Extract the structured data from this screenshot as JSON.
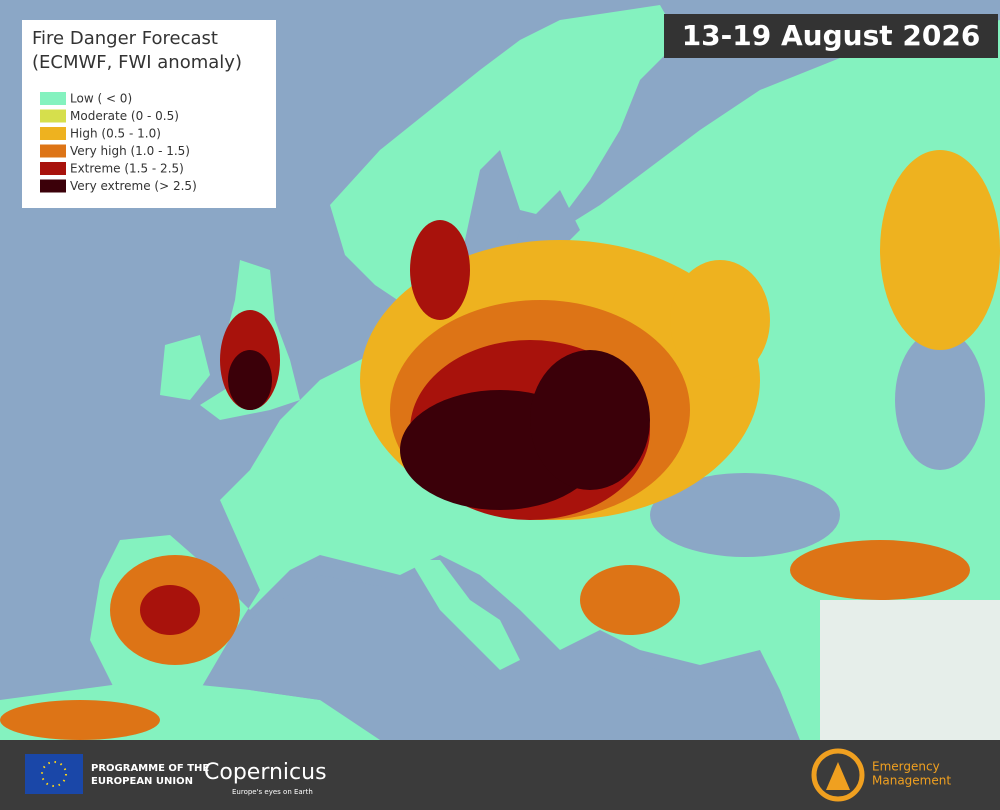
{
  "date_label": "13-19 August 2026",
  "legend": {
    "title": [
      "Fire Danger Forecast",
      "(ECMWF, FWI anomaly)"
    ],
    "items": [
      {
        "label": "Low ( < 0)",
        "color": "#84f2bf"
      },
      {
        "label": "Moderate (0 - 0.5)",
        "color": "#d6df4c"
      },
      {
        "label": "High (0.5 - 1.0)",
        "color": "#eeb21f"
      },
      {
        "label": "Very high (1.0 - 1.5)",
        "color": "#dd7416"
      },
      {
        "label": "Extreme (1.5 - 2.5)",
        "color": "#a8120c"
      },
      {
        "label": "Very extreme (> 2.5)",
        "color": "#3b0009"
      }
    ]
  },
  "footer": {
    "programme": [
      "PROGRAMME OF THE",
      "EUROPEAN UNION"
    ],
    "copernicus": "Copernicus",
    "copernicus_tagline": "Europe's eyes on Earth",
    "emergency": [
      "Emergency",
      "Management"
    ]
  }
}
